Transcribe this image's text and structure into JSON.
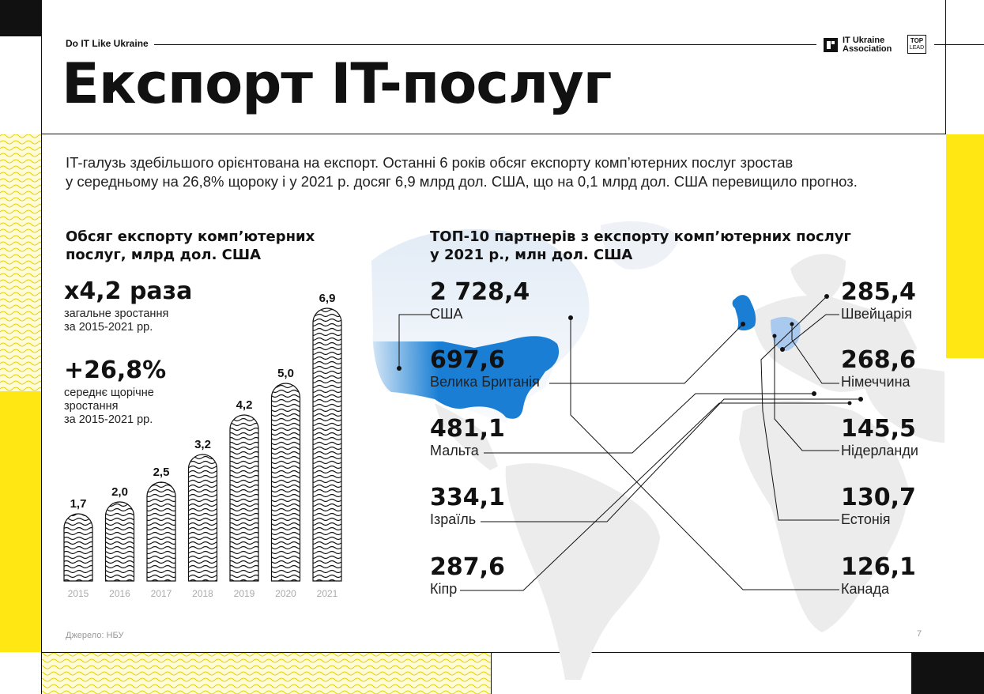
{
  "header": {
    "brand": "Do IT Like Ukraine",
    "logo_line1": "IT Ukraine",
    "logo_line2": "Association",
    "toplead_top": "TOP",
    "toplead_bottom": "LEAD"
  },
  "title": "Експорт IT-послуг",
  "intro": {
    "line1": "IT-галузь здебільшого орієнтована на експорт. Останні 6 років обсяг експорту комп’ютерних послуг зростав",
    "line2": "у середньому на 26,8% щороку і у 2021 р. досяг 6,9 млрд дол. США, що на 0,1 млрд дол. США перевищило прогноз."
  },
  "left_section": {
    "heading_line1": "Обсяг експорту комп’ютерних",
    "heading_line2": "послуг, млрд дол. США",
    "stat1_value": "x4,2 раза",
    "stat1_line1": "загальне зростання",
    "stat1_line2": "за 2015-2021 рр.",
    "stat2_value": "+26,8%",
    "stat2_line1": "середнє щорічне",
    "stat2_line2": "зростання",
    "stat2_line3": "за 2015-2021 рр."
  },
  "right_section": {
    "heading_line1": "ТОП-10 партнерів з експорту комп’ютерних послуг",
    "heading_line2": "у 2021 р., млн дол. США"
  },
  "source": "Джерело: НБУ",
  "page_number": "7",
  "colors": {
    "yellow": "#FFE713",
    "blue": "#1a7fd4",
    "map_grey": "#ececec",
    "black": "#111111"
  },
  "chart_data": [
    {
      "type": "bar",
      "title": "Обсяг експорту комп’ютерних послуг, млрд дол. США",
      "categories": [
        "2015",
        "2016",
        "2017",
        "2018",
        "2019",
        "2020",
        "2021"
      ],
      "values": [
        1.7,
        2.0,
        2.5,
        3.2,
        4.2,
        5.0,
        6.9
      ],
      "value_labels": [
        "1,7",
        "2,0",
        "2,5",
        "3,2",
        "4,2",
        "5,0",
        "6,9"
      ],
      "ylim": [
        0,
        6.9
      ]
    },
    {
      "type": "table",
      "title": "ТОП-10 партнерів з експорту комп’ютерних послуг у 2021 р., млн дол. США",
      "left_column": [
        {
          "value": "2 728,4",
          "country": "США"
        },
        {
          "value": "697,6",
          "country": "Велика Британія"
        },
        {
          "value": "481,1",
          "country": "Мальта"
        },
        {
          "value": "334,1",
          "country": "Ізраїль"
        },
        {
          "value": "287,6",
          "country": "Кіпр"
        }
      ],
      "right_column": [
        {
          "value": "285,4",
          "country": "Швейцарія"
        },
        {
          "value": "268,6",
          "country": "Німеччина"
        },
        {
          "value": "145,5",
          "country": "Нідерланди"
        },
        {
          "value": "130,7",
          "country": "Естонія"
        },
        {
          "value": "126,1",
          "country": "Канада"
        }
      ]
    }
  ]
}
